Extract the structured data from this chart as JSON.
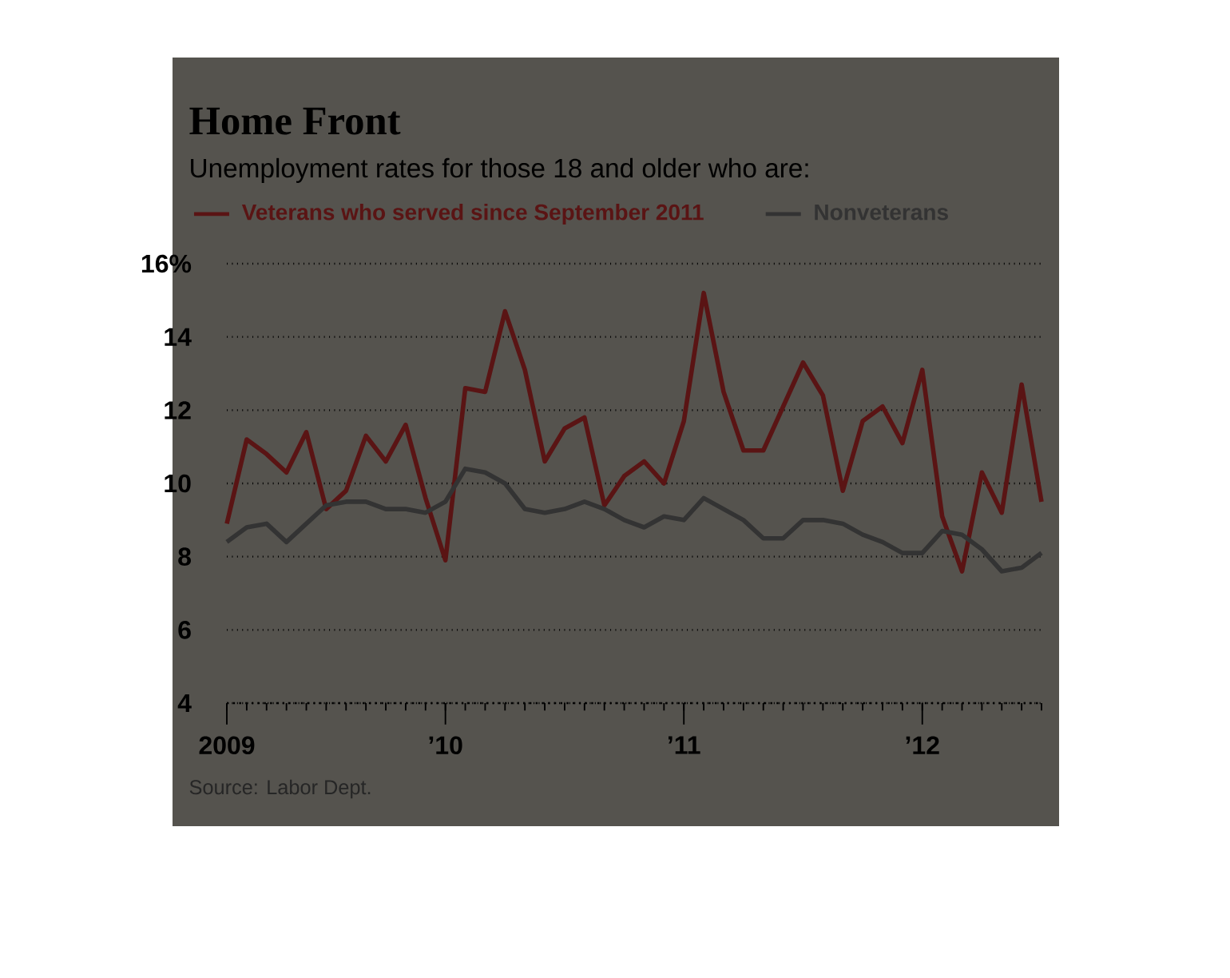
{
  "chart_data": {
    "type": "line",
    "title": "Home Front",
    "subtitle": "Unemployment rates for those 18 and older who are:",
    "x": [
      "2009-02",
      "2009-03",
      "2009-04",
      "2009-05",
      "2009-06",
      "2009-07",
      "2009-08",
      "2009-09",
      "2009-10",
      "2009-11",
      "2009-12",
      "2010-01",
      "2010-02",
      "2010-03",
      "2010-04",
      "2010-05",
      "2010-06",
      "2010-07",
      "2010-08",
      "2010-09",
      "2010-10",
      "2010-11",
      "2010-12",
      "2011-01",
      "2011-02",
      "2011-03",
      "2011-04",
      "2011-05",
      "2011-06",
      "2011-07",
      "2011-08",
      "2011-09",
      "2011-10",
      "2011-11",
      "2011-12",
      "2012-01",
      "2012-02",
      "2012-03",
      "2012-04",
      "2012-05",
      "2012-06",
      "2012-07"
    ],
    "series": [
      {
        "name": "Veterans who served since September 2011",
        "color": "#5a1414",
        "values": [
          8.9,
          11.2,
          10.8,
          10.3,
          11.4,
          9.3,
          9.8,
          11.3,
          10.6,
          11.6,
          9.6,
          7.9,
          12.6,
          12.5,
          14.7,
          13.1,
          10.6,
          11.5,
          11.8,
          9.4,
          10.2,
          10.6,
          10.0,
          11.7,
          15.2,
          12.5,
          10.9,
          10.9,
          12.1,
          13.3,
          12.4,
          9.8,
          11.7,
          12.1,
          11.1,
          13.1,
          9.1,
          7.6,
          10.3,
          9.2,
          12.7,
          9.5
        ]
      },
      {
        "name": "Nonveterans",
        "color": "#333333",
        "values": [
          8.4,
          8.8,
          8.9,
          8.4,
          8.9,
          9.4,
          9.5,
          9.5,
          9.3,
          9.3,
          9.2,
          9.5,
          10.4,
          10.3,
          10.0,
          9.3,
          9.2,
          9.3,
          9.5,
          9.3,
          9.0,
          8.8,
          9.1,
          9.0,
          9.6,
          9.3,
          9.0,
          8.5,
          8.5,
          9.0,
          9.0,
          8.9,
          8.6,
          8.4,
          8.1,
          8.1,
          8.7,
          8.6,
          8.2,
          7.6,
          7.7,
          8.1
        ]
      }
    ],
    "xlim": [
      "2009-02",
      "2012-07"
    ],
    "xticks": [
      {
        "value": "2009-02",
        "label": "2009"
      },
      {
        "value": "2010-01",
        "label": "’10"
      },
      {
        "value": "2011-01",
        "label": "’11"
      },
      {
        "value": "2012-01",
        "label": "’12"
      }
    ],
    "ylim": [
      4,
      16
    ],
    "yticks": [
      4,
      6,
      8,
      10,
      12,
      14,
      {
        "value": 16,
        "label": "16%"
      }
    ],
    "grid": "y",
    "legend": "top left",
    "marker": "none",
    "line_style": "solid",
    "annotations": [
      "Source: Labor Dept."
    ]
  }
}
